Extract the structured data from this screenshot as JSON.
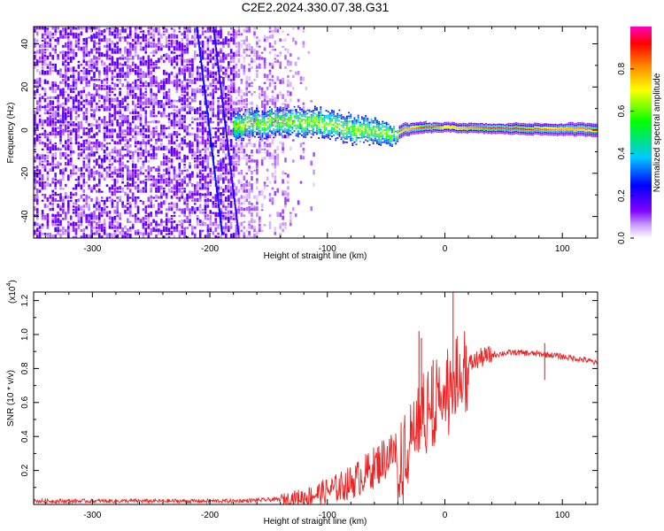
{
  "title": "C2E2.2024.330.07.38.G31",
  "spectrogram": {
    "xlabel": "Height of straight line (km)",
    "ylabel": "Frequency (Hz)",
    "colorbar_label": "Normalized spectral amplitude"
  },
  "snr": {
    "xlabel": "Height of straight line (km)",
    "ylabel": "SNR (10 * v/v)",
    "exponent_label": "(x10",
    "exponent_power": "4",
    "exponent_close": ")"
  },
  "chart_data": [
    {
      "type": "heatmap",
      "title": "C2E2.2024.330.07.38.G31",
      "xlabel": "Height of straight line (km)",
      "ylabel": "Frequency (Hz)",
      "xlim": [
        -350,
        130
      ],
      "ylim": [
        -50,
        48
      ],
      "xticks": [
        -300,
        -200,
        -100,
        0,
        100
      ],
      "yticks": [
        -40,
        -20,
        0,
        20,
        40
      ],
      "colorbar": {
        "label": "Normalized spectral amplitude",
        "range": [
          0,
          1
        ],
        "ticks": [
          0.0,
          0.2,
          0.4,
          0.6,
          0.8
        ],
        "colormap": [
          "#ffffff",
          "#8000ff",
          "#0000ff",
          "#00c8ff",
          "#00ff00",
          "#ffff00",
          "#ff8000",
          "#ff0000",
          "#ff00c0"
        ]
      },
      "features": {
        "noise_region_x": [
          -350,
          -120
        ],
        "dense_noise_x": [
          -350,
          -180
        ],
        "tone_center_freq_hz": [
          [
            -175,
            2
          ],
          [
            -150,
            3
          ],
          [
            -125,
            4
          ],
          [
            -100,
            3
          ],
          [
            -80,
            0
          ],
          [
            -60,
            -1
          ],
          [
            -45,
            -3
          ],
          [
            -35,
            0
          ],
          [
            -20,
            1
          ],
          [
            0,
            1
          ],
          [
            50,
            0.5
          ],
          [
            130,
            0
          ]
        ],
        "tone_halfwidth_hz": [
          [
            -175,
            6
          ],
          [
            -120,
            6
          ],
          [
            -80,
            6
          ],
          [
            -50,
            5
          ],
          [
            -40,
            3
          ],
          [
            0,
            2
          ],
          [
            130,
            3
          ]
        ]
      }
    },
    {
      "type": "line",
      "xlabel": "Height of straight line (km)",
      "ylabel": "SNR (10 * v/v)",
      "xlim": [
        -350,
        130
      ],
      "ylim": [
        0,
        1.25
      ],
      "y_scale_exponent": 4,
      "xticks": [
        -300,
        -200,
        -100,
        0,
        100
      ],
      "yticks": [
        0.2,
        0.4,
        0.6,
        0.8,
        1.0,
        1.2
      ],
      "series": [
        {
          "color": "#ee2222",
          "x": [
            -350,
            -300,
            -250,
            -200,
            -180,
            -160,
            -140,
            -120,
            -110,
            -100,
            -90,
            -80,
            -70,
            -60,
            -50,
            -40,
            -30,
            -25,
            -20,
            -15,
            -10,
            -5,
            0,
            5,
            10,
            15,
            20,
            25,
            30,
            40,
            50,
            60,
            70,
            80,
            90,
            100,
            110,
            120,
            130
          ],
          "y": [
            0.02,
            0.02,
            0.02,
            0.02,
            0.02,
            0.025,
            0.03,
            0.045,
            0.06,
            0.08,
            0.1,
            0.13,
            0.17,
            0.22,
            0.28,
            0.32,
            0.38,
            0.45,
            0.55,
            0.62,
            0.66,
            0.7,
            0.72,
            0.74,
            0.77,
            0.8,
            0.82,
            0.84,
            0.86,
            0.88,
            0.89,
            0.895,
            0.89,
            0.885,
            0.88,
            0.87,
            0.86,
            0.85,
            0.83
          ]
        }
      ],
      "spikes": [
        {
          "x": -22,
          "y": 1.02
        },
        {
          "x": -20,
          "y": 0.98
        },
        {
          "x": -10,
          "y": 0.85
        },
        {
          "x": 7,
          "y": 1.25
        },
        {
          "x": 85,
          "y": 0.95
        }
      ]
    }
  ]
}
